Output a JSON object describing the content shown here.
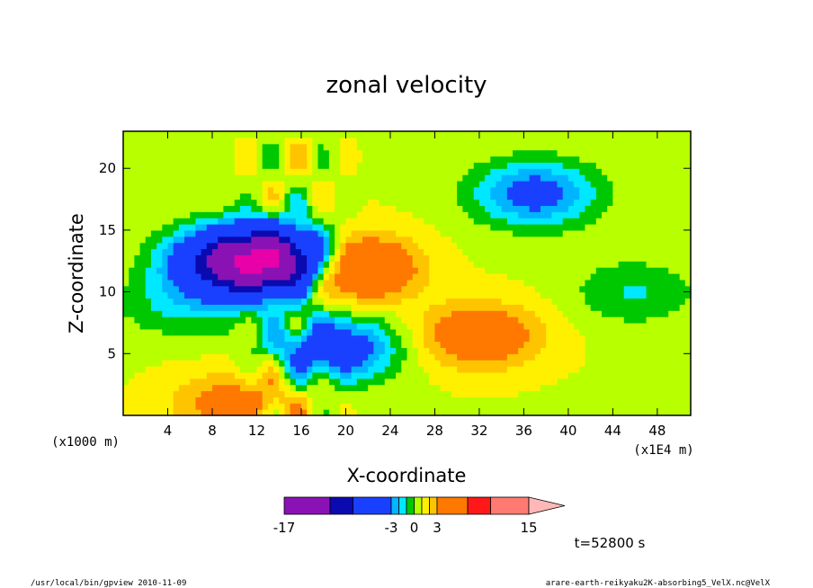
{
  "chart_data": {
    "type": "heatmap",
    "title": "zonal velocity",
    "xlabel": "X-coordinate",
    "ylabel": "Z-coordinate",
    "x_unit_note": "(x1E4 m)",
    "z_unit_note": "(x1000 m)",
    "xlim": [
      0,
      51
    ],
    "ylim": [
      0,
      23
    ],
    "x_ticks": [
      "4",
      "8",
      "12",
      "16",
      "20",
      "24",
      "28",
      "32",
      "36",
      "40",
      "44",
      "48"
    ],
    "x_tick_values": [
      4,
      8,
      12,
      16,
      20,
      24,
      28,
      32,
      36,
      40,
      44,
      48
    ],
    "y_ticks": [
      "5",
      "10",
      "15",
      "20"
    ],
    "y_tick_values": [
      5,
      10,
      15,
      20
    ],
    "colorbar": {
      "boundaries": [
        -17,
        -11,
        -8,
        -3,
        -2,
        -1,
        0,
        1,
        2,
        3,
        7,
        10,
        15
      ],
      "colors": [
        "#e800a8",
        "#8a12b4",
        "#0a0ab0",
        "#1a40ff",
        "#00b4ff",
        "#00e8ff",
        "#00c800",
        "#b8ff00",
        "#fff000",
        "#ffc400",
        "#ff7800",
        "#ff1818",
        "#ff7a72",
        "#ffb8b8"
      ],
      "tick_labels": [
        "-17",
        "-3",
        "0",
        "3",
        "15"
      ],
      "tick_values": [
        -17,
        -3,
        0,
        3,
        15
      ]
    },
    "field_features": [
      {
        "description": "positive (orange) jet",
        "x_center": 20,
        "z_center": 12,
        "value": 8
      },
      {
        "description": "negative (navy) band",
        "x_center": 10,
        "z_center": 12.5,
        "value": -10
      },
      {
        "description": "negative (purple) core",
        "x_center": 14,
        "z_center": 12.5,
        "value": -14
      },
      {
        "description": "positive broad region",
        "x_center": 32,
        "z_center": 6.5,
        "value": 4
      },
      {
        "description": "negative upper region",
        "x_center": 37,
        "z_center": 18,
        "value": -5
      },
      {
        "description": "negative lower-left (cyan)",
        "x_center": 5,
        "z_center": 9,
        "value": -2
      },
      {
        "description": "negative lower-right (cyan)",
        "x_center": 46,
        "z_center": 10,
        "value": -2
      },
      {
        "description": "positive near surface",
        "x_center": 10,
        "z_center": 1,
        "value": 3
      },
      {
        "description": "negative shear layer",
        "x_center": 19,
        "z_center": 5.5,
        "value": -6
      }
    ]
  },
  "annotations": {
    "time": "t=52800 s",
    "footer_left": "/usr/local/bin/gpview  2010-11-09",
    "footer_right": "arare-earth-reikyaku2K-absorbing5_VelX.nc@VelX"
  }
}
